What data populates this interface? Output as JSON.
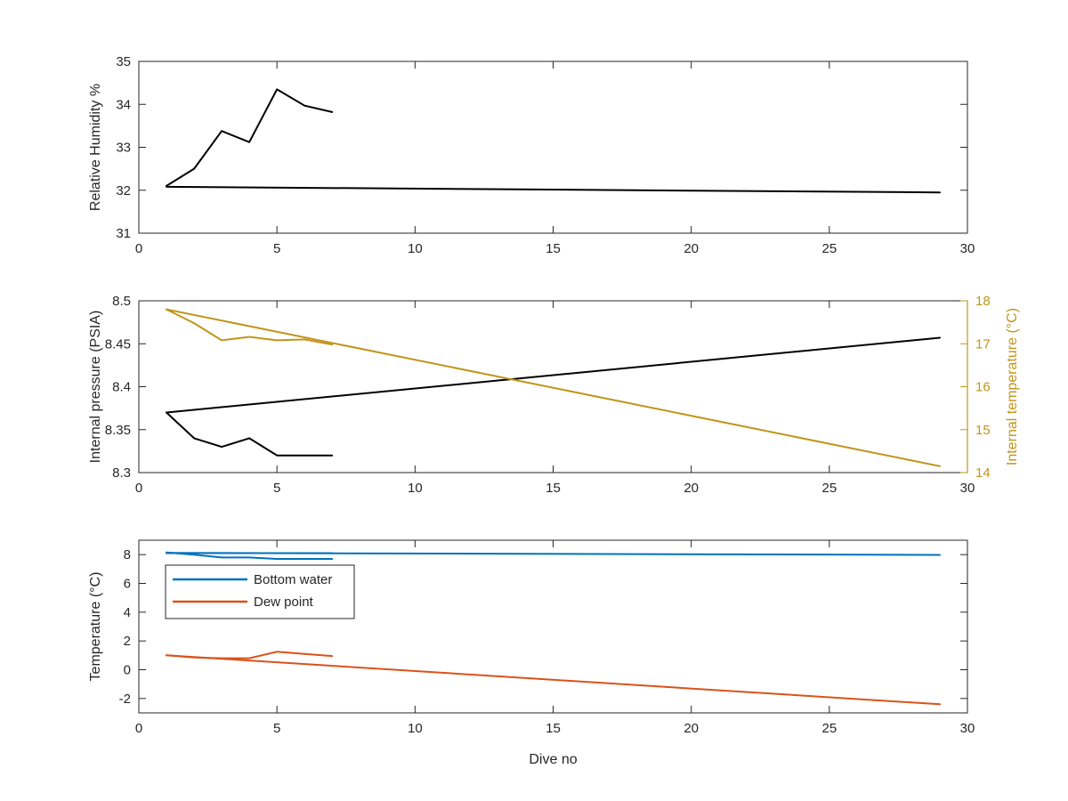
{
  "chart_data": [
    {
      "type": "line",
      "xlim": [
        0,
        30
      ],
      "ylim": [
        31,
        35
      ],
      "xticks": [
        0,
        5,
        10,
        15,
        20,
        25,
        30
      ],
      "yticks": [
        31,
        32,
        33,
        34,
        35
      ],
      "xlabel": "",
      "ylabel": "Relative Humidity %",
      "grid": false,
      "series": [
        {
          "color": "#000000",
          "x": [
            1,
            2,
            3,
            4,
            5,
            6,
            7
          ],
          "y": [
            32.1,
            32.5,
            33.38,
            33.12,
            34.35,
            33.97,
            33.82
          ]
        },
        {
          "color": "#000000",
          "x": [
            1,
            29
          ],
          "y": [
            32.08,
            31.95
          ]
        }
      ]
    },
    {
      "type": "line",
      "xlim": [
        0,
        30
      ],
      "ylim": [
        8.3,
        8.5
      ],
      "ylim_right": [
        14,
        18
      ],
      "xticks": [
        0,
        5,
        10,
        15,
        20,
        25,
        30
      ],
      "yticks": [
        8.3,
        8.35,
        8.4,
        8.45,
        8.5
      ],
      "yticks_right": [
        14,
        15,
        16,
        17,
        18
      ],
      "xlabel": "",
      "ylabel": "Internal pressure (PSIA)",
      "ylabel_right": "Internal temperature (°C)",
      "right_axis_color": "#c0951c",
      "grid": false,
      "series": [
        {
          "axis": "left",
          "color": "#000000",
          "x": [
            1,
            2,
            3,
            4,
            5,
            6,
            7
          ],
          "y": [
            8.37,
            8.34,
            8.33,
            8.34,
            8.32,
            8.32,
            8.32
          ]
        },
        {
          "axis": "left",
          "color": "#000000",
          "x": [
            1,
            29
          ],
          "y": [
            8.37,
            8.457
          ]
        },
        {
          "axis": "right",
          "color": "#c0951c",
          "x": [
            1,
            2,
            3,
            4,
            5,
            6,
            7
          ],
          "y": [
            17.8,
            17.48,
            17.08,
            17.16,
            17.08,
            17.1,
            16.98
          ]
        },
        {
          "axis": "right",
          "color": "#c0951c",
          "x": [
            1,
            29
          ],
          "y": [
            17.8,
            14.15
          ]
        }
      ]
    },
    {
      "type": "line",
      "xlim": [
        0,
        30
      ],
      "ylim": [
        -3,
        9
      ],
      "xticks": [
        0,
        5,
        10,
        15,
        20,
        25,
        30
      ],
      "yticks": [
        -2,
        0,
        2,
        4,
        6,
        8
      ],
      "xlabel": "Dive no",
      "ylabel": "Temperature (°C)",
      "grid": false,
      "legend_position": "top-left",
      "series": [
        {
          "name": "Bottom water",
          "color": "#0072bd",
          "x": [
            1,
            2,
            3,
            4,
            5,
            6,
            7
          ],
          "y": [
            8.15,
            8.0,
            7.8,
            7.8,
            7.7,
            7.7,
            7.7
          ]
        },
        {
          "color": "#0072bd",
          "x": [
            1,
            7
          ],
          "y": [
            8.1,
            8.1
          ]
        },
        {
          "color": "#0072bd",
          "x": [
            1,
            29
          ],
          "y": [
            8.12,
            7.98
          ]
        },
        {
          "name": "Dew point",
          "color": "#d95319",
          "x": [
            1,
            2,
            3,
            4,
            5,
            6,
            7
          ],
          "y": [
            1.0,
            0.85,
            0.8,
            0.8,
            1.25,
            1.1,
            0.95
          ]
        },
        {
          "color": "#d95319",
          "x": [
            1,
            29
          ],
          "y": [
            1.0,
            -2.4
          ]
        }
      ]
    }
  ]
}
